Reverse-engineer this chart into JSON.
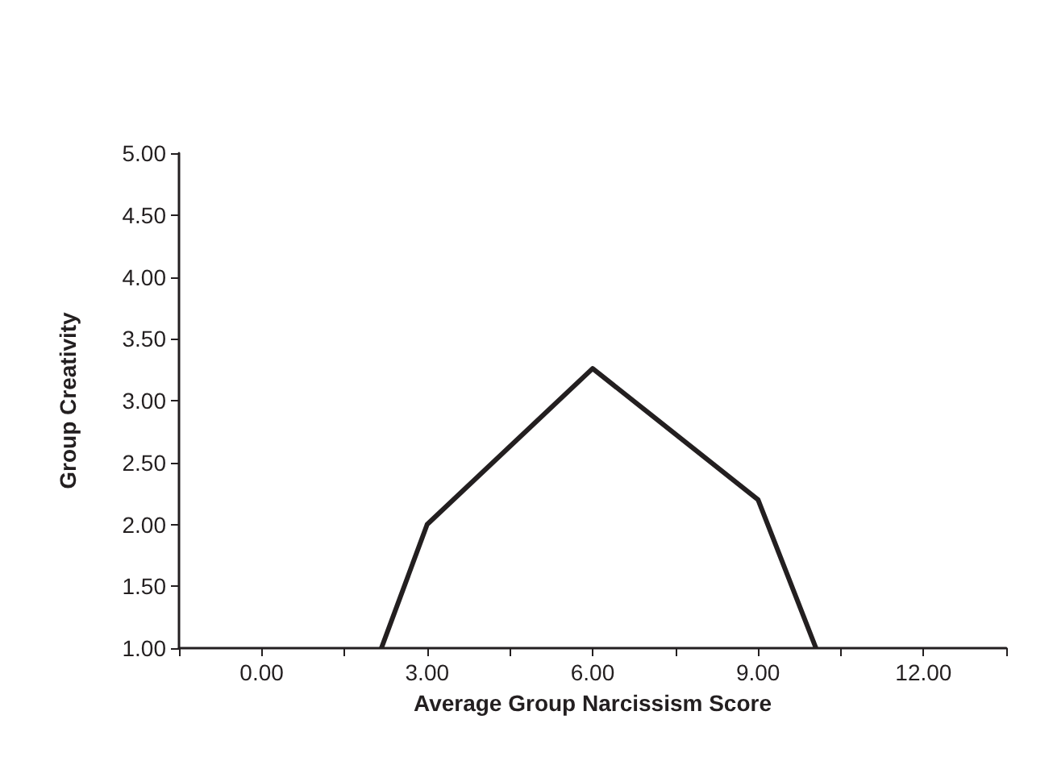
{
  "chart_data": {
    "type": "line",
    "xlabel": "Average Group Narcissism Score",
    "ylabel": "Group Creativity",
    "x": [
      2.17,
      3,
      6,
      9,
      10.05
    ],
    "series": [
      {
        "color": "#231f20",
        "values": [
          1,
          2,
          3.26,
          2.2,
          1
        ]
      }
    ],
    "xlim": [
      -1.5,
      13.5
    ],
    "xticks": [
      {
        "value": -1.5,
        "label": null
      },
      {
        "value": 0,
        "label": "0.00"
      },
      {
        "value": 1.5,
        "label": null
      },
      {
        "value": 3,
        "label": "3.00"
      },
      {
        "value": 4.5,
        "label": null
      },
      {
        "value": 6,
        "label": "6.00"
      },
      {
        "value": 7.5,
        "label": null
      },
      {
        "value": 9,
        "label": "9.00"
      },
      {
        "value": 10.5,
        "label": null
      },
      {
        "value": 12,
        "label": "12.00"
      },
      {
        "value": 13.5,
        "label": null
      }
    ],
    "ylim": [
      1,
      5
    ],
    "yticks": [
      {
        "value": 1,
        "label": "1.00"
      },
      {
        "value": 1.5,
        "label": "1.50"
      },
      {
        "value": 2,
        "label": "2.00"
      },
      {
        "value": 2.5,
        "label": "2.50"
      },
      {
        "value": 3,
        "label": "3.00"
      },
      {
        "value": 3.5,
        "label": "3.50"
      },
      {
        "value": 4,
        "label": "4.00"
      },
      {
        "value": 4.5,
        "label": "4.50"
      },
      {
        "value": 5,
        "label": "5.00"
      }
    ],
    "grid": false,
    "marker": "none",
    "line_style": "solid"
  }
}
